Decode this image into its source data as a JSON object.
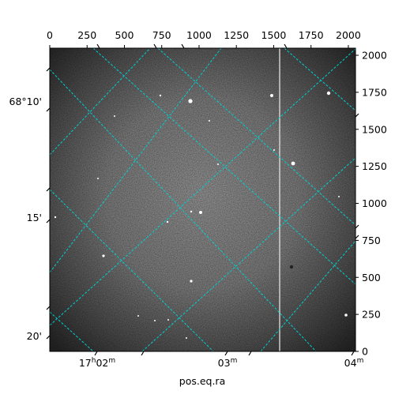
{
  "chart_data": {
    "type": "image",
    "xlabel": "pos.eq.ra",
    "ylabel": "",
    "pixel_axes": {
      "x": {
        "range": [
          0,
          2048
        ],
        "ticks": [
          0,
          250,
          500,
          750,
          1000,
          1250,
          1500,
          1750,
          2000
        ]
      },
      "y": {
        "range": [
          0,
          2048
        ],
        "ticks": [
          0,
          250,
          500,
          750,
          1000,
          1250,
          1500,
          1750,
          2000
        ]
      }
    },
    "ra_ticks": [
      {
        "label": "17",
        "sup": "h",
        "rest": "02",
        "sup2": "m"
      },
      {
        "label": "03",
        "sup": "m",
        "rest": "",
        "sup2": ""
      },
      {
        "label": "04",
        "sup": "m",
        "rest": "",
        "sup2": ""
      }
    ],
    "dec_ticks": [
      "68°10'",
      "15'",
      "20'"
    ],
    "grid": {
      "shown": true,
      "color": "#00d0d0"
    },
    "colormap": "grayscale",
    "features": [
      "bright vertical column near x≈1530",
      "sparse bright stars across field",
      "vignetting in corners"
    ]
  }
}
